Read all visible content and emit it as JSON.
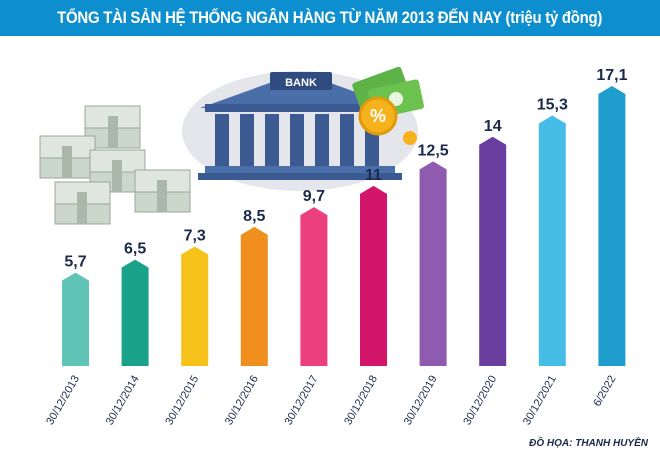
{
  "title": "TỔNG TÀI SẢN HỆ THỐNG NGÂN HÀNG TỪ NĂM 2013 ĐẾN NAY (triệu tỷ đồng)",
  "bank_sign": "BANK",
  "credit": "ĐỒ HỌA: THANH HUYỀN",
  "colors": {
    "title_bg": "#0d8fcf",
    "bars": [
      "#5fc4b5",
      "#1aa38a",
      "#f7c21b",
      "#f08f1e",
      "#ec3f7d",
      "#d4166b",
      "#8f5bb0",
      "#6a3e9e",
      "#45bde6",
      "#1f9dcc"
    ]
  },
  "icons": [
    "bank-building-icon",
    "money-stacks-icon",
    "dollar-notes-icon",
    "percent-coin-icon"
  ],
  "chart_data": {
    "type": "bar",
    "categories": [
      "30/12/2013",
      "30/12/2014",
      "30/12/2015",
      "30/12/2016",
      "30/12/2017",
      "30/12/2018",
      "30/12/2019",
      "30/12/2020",
      "30/12/2021",
      "6/2022"
    ],
    "values": [
      5.7,
      6.5,
      7.3,
      8.5,
      9.7,
      11,
      12.5,
      14,
      15.3,
      17.1
    ],
    "value_labels": [
      "5,7",
      "6,5",
      "7,3",
      "8,5",
      "9,7",
      "11",
      "12,5",
      "14",
      "15,3",
      "17,1"
    ],
    "title": "TỔNG TÀI SẢN HỆ THỐNG NGÂN HÀNG TỪ NĂM 2013 ĐẾN NAY (triệu tỷ đồng)",
    "ylim": [
      0,
      17.1
    ],
    "grid": false,
    "legend": "none"
  }
}
